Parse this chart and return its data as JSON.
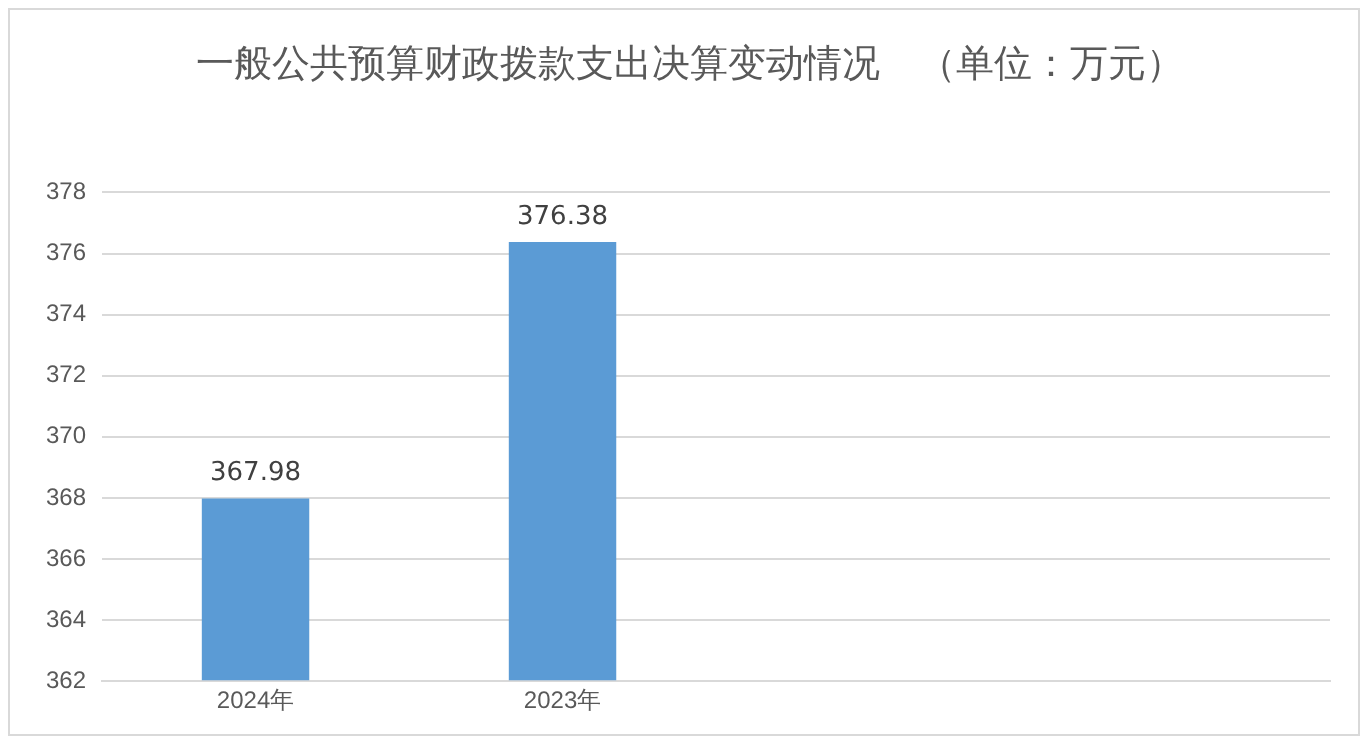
{
  "chart_data": {
    "type": "bar",
    "title": "一般公共预算财政拨款支出决算变动情况　（单位：万元）",
    "categories": [
      "2024年",
      "2023年",
      null,
      null
    ],
    "values": [
      367.98,
      376.38,
      null,
      null
    ],
    "color": "#5b9bd5",
    "ylim": [
      362,
      378
    ],
    "yticks": [
      362,
      364,
      366,
      368,
      370,
      372,
      374,
      376,
      378
    ],
    "grid": "y",
    "data_labels": true
  }
}
